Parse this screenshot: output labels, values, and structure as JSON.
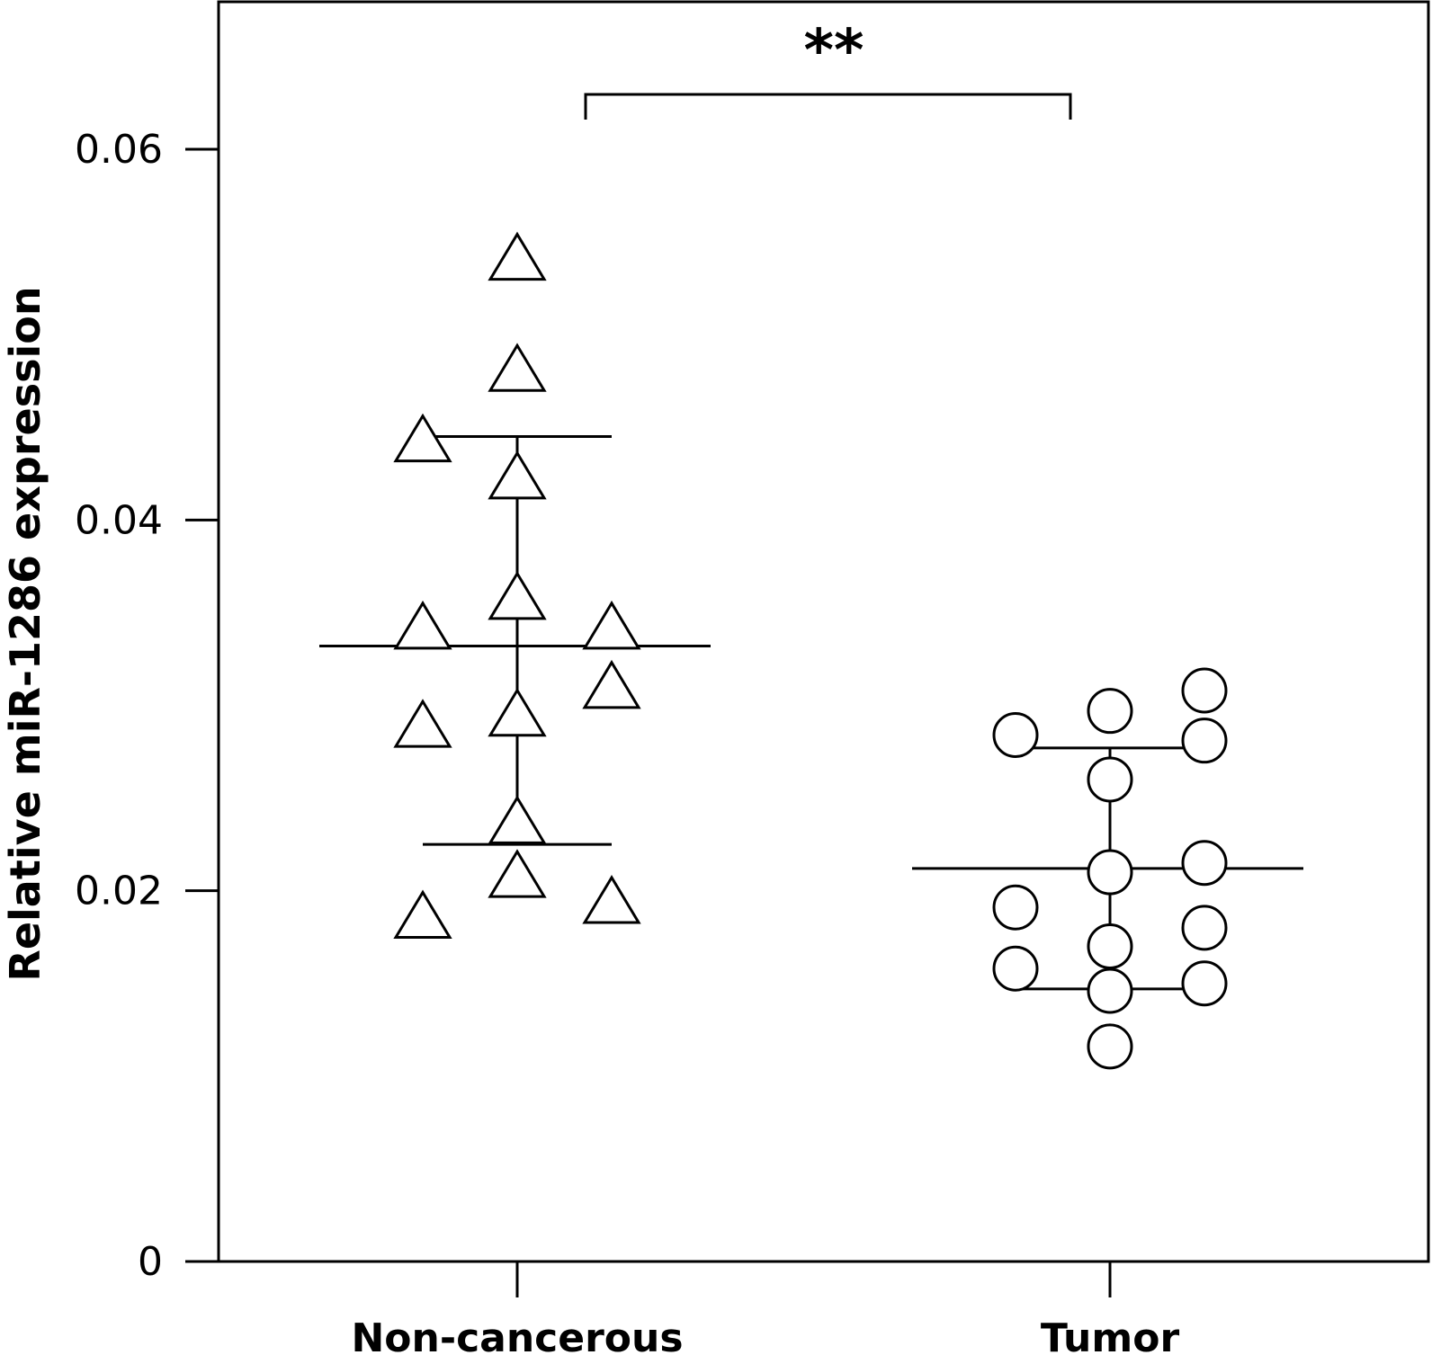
{
  "chart_data": {
    "type": "scatter",
    "xlabel": "",
    "ylabel": "Relative miR-1286 expression",
    "categories": [
      "Non-cancerous",
      "Tumor"
    ],
    "ylim": [
      0,
      0.068
    ],
    "yticks": [
      0,
      0.02,
      0.04,
      0.06
    ],
    "ytick_labels": [
      "0",
      "0.02",
      "0.04",
      "0.06"
    ],
    "grid": false,
    "series": [
      {
        "category": "Non-cancerous",
        "marker": "triangle",
        "points": [
          {
            "offset": 0,
            "y": 0.0542
          },
          {
            "offset": 0,
            "y": 0.0482
          },
          {
            "offset": -1,
            "y": 0.0444
          },
          {
            "offset": 0,
            "y": 0.0424
          },
          {
            "offset": 0,
            "y": 0.0359
          },
          {
            "offset": -1,
            "y": 0.0343
          },
          {
            "offset": 1,
            "y": 0.0343
          },
          {
            "offset": 1,
            "y": 0.0311
          },
          {
            "offset": 0,
            "y": 0.0296
          },
          {
            "offset": -1,
            "y": 0.029
          },
          {
            "offset": 0,
            "y": 0.0238
          },
          {
            "offset": 0,
            "y": 0.0209
          },
          {
            "offset": 1,
            "y": 0.0195
          },
          {
            "offset": -1,
            "y": 0.0187
          }
        ],
        "median": 0.0332,
        "q1": 0.0225,
        "q3": 0.0445
      },
      {
        "category": "Tumor",
        "marker": "circle",
        "points": [
          {
            "offset": 1,
            "y": 0.0308
          },
          {
            "offset": 0,
            "y": 0.0297
          },
          {
            "offset": -1,
            "y": 0.0284
          },
          {
            "offset": 1,
            "y": 0.0281
          },
          {
            "offset": 0,
            "y": 0.026
          },
          {
            "offset": 1,
            "y": 0.0215
          },
          {
            "offset": 0,
            "y": 0.021
          },
          {
            "offset": -1,
            "y": 0.0191
          },
          {
            "offset": 1,
            "y": 0.018
          },
          {
            "offset": 0,
            "y": 0.017
          },
          {
            "offset": -1,
            "y": 0.0158
          },
          {
            "offset": 1,
            "y": 0.015
          },
          {
            "offset": 0,
            "y": 0.0146
          },
          {
            "offset": 0,
            "y": 0.0116
          }
        ],
        "median": 0.0212,
        "q1": 0.0147,
        "q3": 0.0277
      }
    ],
    "significance": {
      "between": [
        "Non-cancerous",
        "Tumor"
      ],
      "label": "**"
    }
  }
}
